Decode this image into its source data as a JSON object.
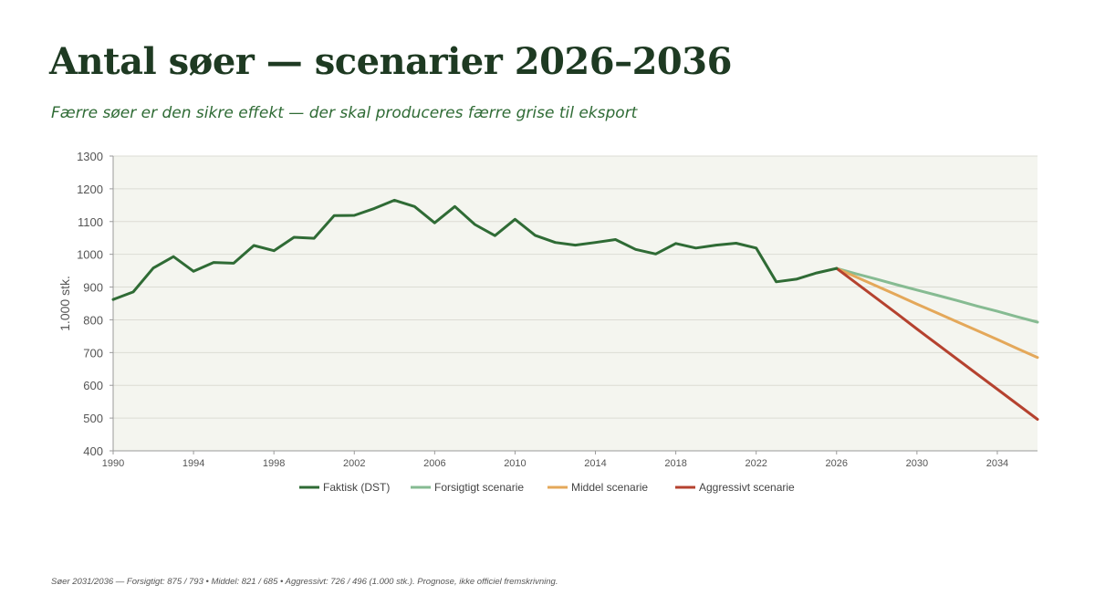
{
  "title": "Antal søer — scenarier 2026–2036",
  "subtitle": "Færre søer er den sikre effekt — der skal produceres færre grise til eksport",
  "footnote": "Søer 2031/2036 — Forsigtigt: 875 / 793  •  Middel: 821 / 685  •  Aggressivt: 726 / 496 (1.000 stk.). Prognose, ikke officiel fremskrivning.",
  "chart_data": {
    "type": "line",
    "ylabel": "1.000 stk.",
    "xlabel": "",
    "ylim": [
      400,
      1300
    ],
    "xlim": [
      1990,
      2036
    ],
    "yticks": [
      400,
      500,
      600,
      700,
      800,
      900,
      1000,
      1100,
      1200,
      1300
    ],
    "xticks": [
      1990,
      1994,
      1998,
      2002,
      2006,
      2010,
      2014,
      2018,
      2022,
      2026,
      2030,
      2034
    ],
    "grid": true,
    "legend_position": "bottom",
    "colors": {
      "plot_background": "#f4f5ef",
      "grid": "#dcdcd4",
      "axis": "#9a9a9a",
      "tick_label": "#555555"
    },
    "series": [
      {
        "name": "Faktisk (DST)",
        "color": "#2f6b35",
        "x": [
          1990,
          1991,
          1992,
          1993,
          1994,
          1995,
          1996,
          1997,
          1998,
          1999,
          2000,
          2001,
          2002,
          2003,
          2004,
          2005,
          2006,
          2007,
          2008,
          2009,
          2010,
          2011,
          2012,
          2013,
          2014,
          2015,
          2016,
          2017,
          2018,
          2019,
          2020,
          2021,
          2022,
          2023,
          2024,
          2025,
          2026
        ],
        "values": [
          862,
          885,
          958,
          993,
          948,
          975,
          973,
          1027,
          1011,
          1052,
          1049,
          1118,
          1119,
          1140,
          1165,
          1146,
          1096,
          1146,
          1091,
          1057,
          1107,
          1058,
          1036,
          1028,
          1036,
          1045,
          1015,
          1001,
          1033,
          1019,
          1028,
          1034,
          1019,
          916,
          924,
          943,
          957
        ]
      },
      {
        "name": "Forsigtigt scenarie",
        "color": "#86bb92",
        "x": [
          2026,
          2027,
          2028,
          2029,
          2030,
          2031,
          2032,
          2033,
          2034,
          2035,
          2036
        ],
        "values": [
          957,
          940,
          924,
          907,
          891,
          875,
          859,
          842,
          826,
          809,
          793
        ]
      },
      {
        "name": "Middel scenarie",
        "color": "#e4a85a",
        "x": [
          2026,
          2027,
          2028,
          2029,
          2030,
          2031,
          2032,
          2033,
          2034,
          2035,
          2036
        ],
        "values": [
          957,
          930,
          903,
          876,
          848,
          821,
          794,
          767,
          740,
          712,
          685
        ]
      },
      {
        "name": "Aggressivt scenarie",
        "color": "#b5422f",
        "x": [
          2026,
          2027,
          2028,
          2029,
          2030,
          2031,
          2032,
          2033,
          2034,
          2035,
          2036
        ],
        "values": [
          957,
          911,
          865,
          819,
          772,
          726,
          680,
          634,
          588,
          542,
          496
        ]
      }
    ]
  }
}
